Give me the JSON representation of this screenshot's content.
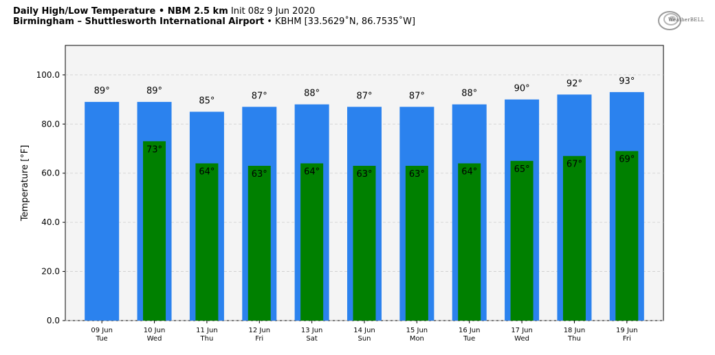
{
  "header": {
    "title_bold": "Daily High/Low Temperature • NBM 2.5 km",
    "init": "Init 08z 9 Jun 2020",
    "location_bold": "Birmingham – Shuttlesworth International Airport",
    "station": "• KBHM [33.5629˚N, 86.7535˚W]"
  },
  "logo": {
    "text": "WeatherBELL"
  },
  "colors": {
    "high": "#2b82ee",
    "low": "#008000",
    "plot_bg": "#f4f4f4"
  },
  "chart_data": {
    "type": "bar",
    "ylabel": "Temperature [°F]",
    "ylim": [
      0,
      112
    ],
    "yticks": [
      0,
      20,
      40,
      60,
      80,
      100
    ],
    "ytick_labels": [
      "0.0",
      "20.0",
      "40.0",
      "60.0",
      "80.0",
      "100.0"
    ],
    "grid": true,
    "categories": [
      {
        "date": "09 Jun",
        "day": "Tue"
      },
      {
        "date": "10 Jun",
        "day": "Wed"
      },
      {
        "date": "11 Jun",
        "day": "Thu"
      },
      {
        "date": "12 Jun",
        "day": "Fri"
      },
      {
        "date": "13 Jun",
        "day": "Sat"
      },
      {
        "date": "14 Jun",
        "day": "Sun"
      },
      {
        "date": "15 Jun",
        "day": "Mon"
      },
      {
        "date": "16 Jun",
        "day": "Tue"
      },
      {
        "date": "17 Jun",
        "day": "Wed"
      },
      {
        "date": "18 Jun",
        "day": "Thu"
      },
      {
        "date": "19 Jun",
        "day": "Fri"
      }
    ],
    "series": [
      {
        "key": "high",
        "values": [
          89,
          89,
          85,
          87,
          88,
          87,
          87,
          88,
          90,
          92,
          93
        ],
        "labels": [
          "89°",
          "89°",
          "85°",
          "87°",
          "88°",
          "87°",
          "87°",
          "88°",
          "90°",
          "92°",
          "93°"
        ]
      },
      {
        "key": "low",
        "values": [
          null,
          73,
          64,
          63,
          64,
          63,
          63,
          64,
          65,
          67,
          69
        ],
        "labels": [
          "",
          "73°",
          "64°",
          "63°",
          "64°",
          "63°",
          "63°",
          "64°",
          "65°",
          "67°",
          "69°"
        ]
      }
    ]
  }
}
